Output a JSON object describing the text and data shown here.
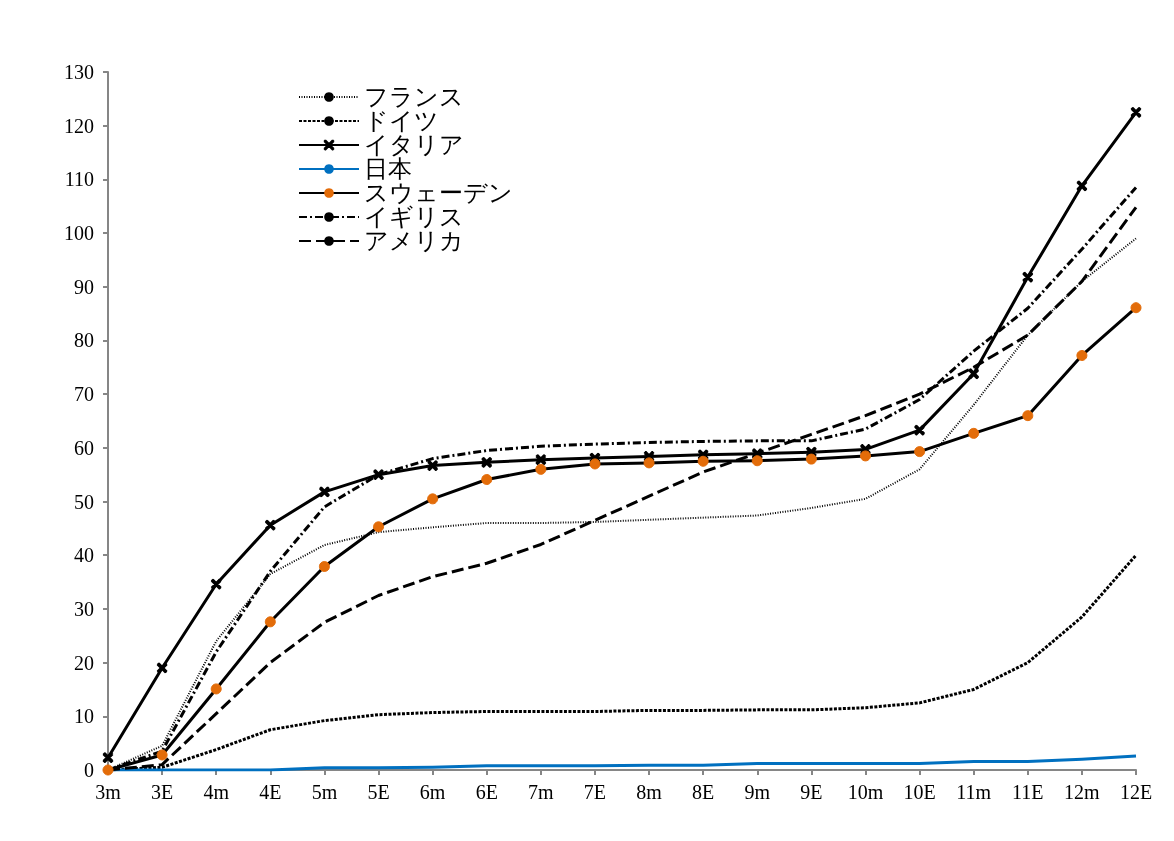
{
  "chart_data": {
    "type": "line",
    "categories": [
      "3m",
      "3E",
      "4m",
      "4E",
      "5m",
      "5E",
      "6m",
      "6E",
      "7m",
      "7E",
      "8m",
      "8E",
      "9m",
      "9E",
      "10m",
      "10E",
      "11m",
      "11E",
      "12m",
      "12E"
    ],
    "series": [
      {
        "name": "フランス",
        "color": "#000000",
        "line_style": "dotted",
        "marker": "none",
        "values": [
          0,
          4.5,
          24,
          36.5,
          41.9,
          44.3,
          45.2,
          46,
          46,
          46.2,
          46.6,
          47,
          47.4,
          48.8,
          50.5,
          56,
          68,
          81,
          91,
          99
        ]
      },
      {
        "name": "ドイツ",
        "color": "#000000",
        "line_style": "dashed",
        "marker": "none",
        "values": [
          0,
          0.5,
          3.8,
          7.5,
          9.2,
          10.3,
          10.7,
          10.9,
          10.9,
          10.9,
          11.1,
          11.1,
          11.2,
          11.2,
          11.6,
          12.5,
          15,
          20,
          28.5,
          40
        ]
      },
      {
        "name": "イタリア",
        "color": "#000000",
        "line_style": "solid",
        "marker": "cross",
        "values": [
          2.3,
          19,
          34.6,
          45.6,
          51.8,
          55,
          56.7,
          57.3,
          57.8,
          58.1,
          58.4,
          58.7,
          58.9,
          59.2,
          59.7,
          63.3,
          73.8,
          91.8,
          108.8,
          122.5
        ]
      },
      {
        "name": "日本",
        "color": "#0070c0",
        "line_style": "solid",
        "marker": "none",
        "values": [
          0,
          0,
          0,
          0,
          0.4,
          0.4,
          0.5,
          0.8,
          0.8,
          0.8,
          0.9,
          0.9,
          1.2,
          1.2,
          1.2,
          1.2,
          1.6,
          1.6,
          2,
          2.6
        ]
      },
      {
        "name": "スウェーデン",
        "color": "#000000",
        "line_style": "solid",
        "marker": "circle",
        "values": [
          0,
          2.8,
          15.1,
          27.6,
          37.9,
          45.3,
          50.5,
          54.1,
          56,
          57,
          57.2,
          57.5,
          57.6,
          57.9,
          58.5,
          59.3,
          62.7,
          66,
          77.2,
          86.1
        ]
      },
      {
        "name": "イギリス",
        "color": "#000000",
        "line_style": "dashdot",
        "marker": "none",
        "values": [
          0,
          3.5,
          22,
          37,
          49,
          55,
          58,
          59.5,
          60.3,
          60.7,
          61,
          61.2,
          61.3,
          61.3,
          63.5,
          69,
          78,
          86,
          97,
          108.5
        ]
      },
      {
        "name": "アメリカ",
        "color": "#000000",
        "line_style": "longdash",
        "marker": "none",
        "values": [
          0,
          1,
          10.5,
          20,
          27.5,
          32.5,
          36,
          38.5,
          42,
          46.5,
          51,
          55.5,
          59,
          62.5,
          66,
          70,
          75,
          81,
          91,
          104.8
        ]
      }
    ],
    "ylim": [
      0,
      130
    ],
    "yticks": [
      0,
      10,
      20,
      30,
      40,
      50,
      60,
      70,
      80,
      90,
      100,
      110,
      120,
      130
    ],
    "grid": false,
    "legend": "top left"
  }
}
